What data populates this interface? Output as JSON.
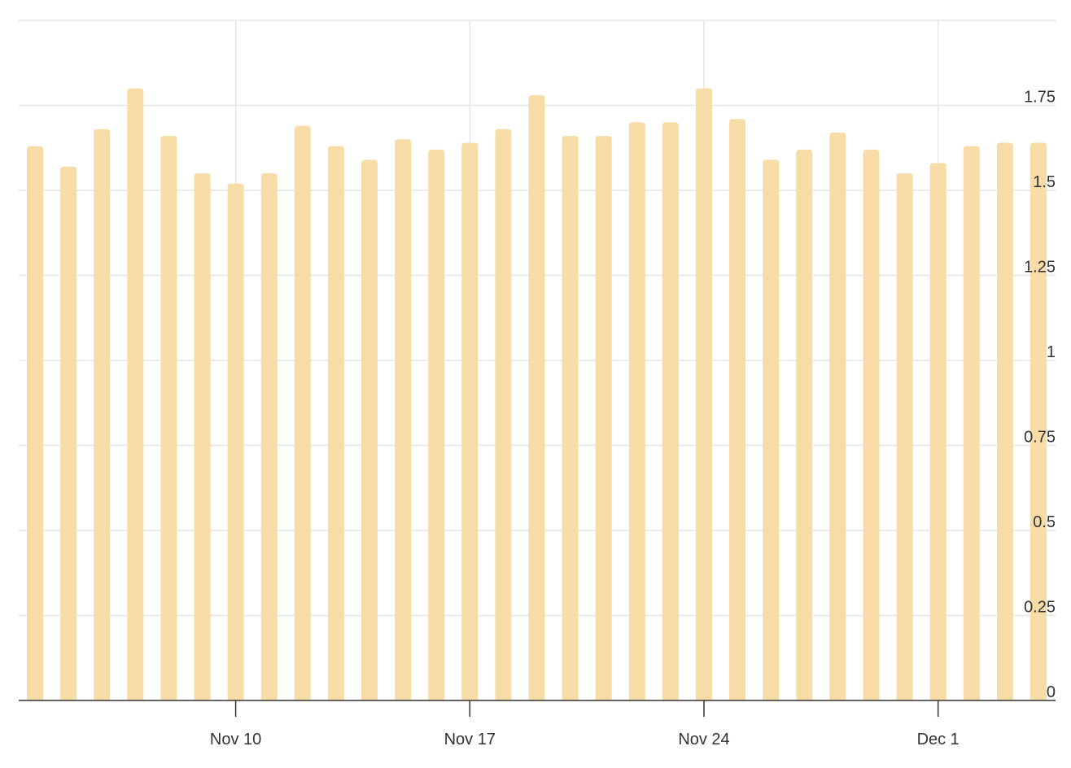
{
  "chart_data": {
    "type": "bar",
    "title": "",
    "xlabel": "",
    "ylabel": "",
    "ylim": [
      0,
      2
    ],
    "y_ticks": [
      0,
      0.25,
      0.5,
      0.75,
      1,
      1.25,
      1.5,
      1.75
    ],
    "y_tick_labels": [
      "0",
      "0.25",
      "0.5",
      "0.75",
      "1",
      "1.25",
      "1.5",
      "1.75"
    ],
    "y_axis_position": "right",
    "grid": true,
    "color": "#f7dca8",
    "categories": [
      "Nov 4",
      "Nov 5",
      "Nov 6",
      "Nov 7",
      "Nov 8",
      "Nov 9",
      "Nov 10",
      "Nov 11",
      "Nov 12",
      "Nov 13",
      "Nov 14",
      "Nov 15",
      "Nov 16",
      "Nov 17",
      "Nov 18",
      "Nov 19",
      "Nov 20",
      "Nov 21",
      "Nov 22",
      "Nov 23",
      "Nov 24",
      "Nov 25",
      "Nov 26",
      "Nov 27",
      "Nov 28",
      "Nov 29",
      "Nov 30",
      "Dec 1",
      "Dec 2",
      "Dec 3",
      "Dec 4"
    ],
    "values": [
      1.63,
      1.57,
      1.68,
      1.8,
      1.66,
      1.55,
      1.52,
      1.55,
      1.69,
      1.63,
      1.59,
      1.65,
      1.62,
      1.64,
      1.68,
      1.78,
      1.66,
      1.66,
      1.7,
      1.7,
      1.8,
      1.71,
      1.59,
      1.62,
      1.67,
      1.62,
      1.55,
      1.58,
      1.63,
      1.64,
      1.64
    ],
    "x_tick_labels": [
      {
        "category": "Nov 10",
        "label": "Nov 10"
      },
      {
        "category": "Nov 17",
        "label": "Nov 17"
      },
      {
        "category": "Nov 24",
        "label": "Nov 24"
      },
      {
        "category": "Dec 1",
        "label": "Dec 1"
      }
    ]
  }
}
